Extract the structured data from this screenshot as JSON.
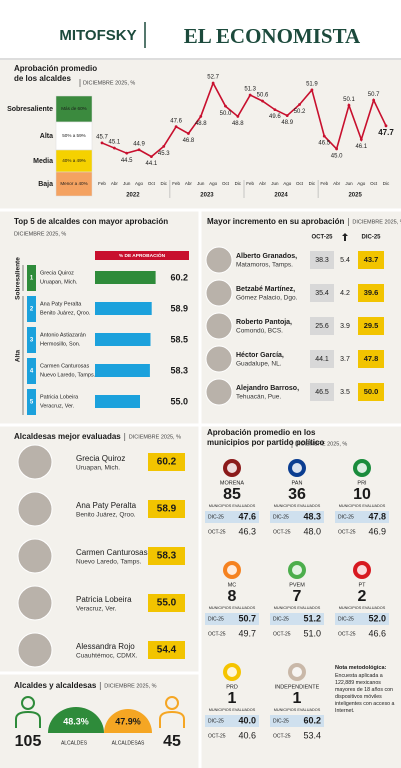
{
  "header": {
    "logo": "MITOFSKY",
    "brand": "EL ECONOMISTA"
  },
  "chart_data": {
    "type": "line",
    "title": "Aprobación promedio de los alcaldes",
    "subtitle": "DICIEMBRE 2025, %",
    "categories": [
      "Feb",
      "Abr",
      "Jun",
      "Ago",
      "Oct",
      "Dic",
      "Feb",
      "Abr",
      "Jun",
      "Ago",
      "Oct",
      "Dic",
      "Feb",
      "Abr",
      "Jun",
      "Ago",
      "Oct",
      "Dic",
      "Feb",
      "Abr",
      "Jun",
      "Ago",
      "Oct",
      "Dic"
    ],
    "years": [
      "2022",
      "2023",
      "2024",
      "2025"
    ],
    "values": [
      45.7,
      45.1,
      44.5,
      44.9,
      44.1,
      45.3,
      47.6,
      46.8,
      48.8,
      52.7,
      50,
      48.8,
      51.3,
      50.6,
      49.6,
      48.9,
      50.2,
      51.9,
      46.5,
      45,
      50.1,
      46.1,
      50.7,
      47.7
    ],
    "value_labels": [
      "45.7",
      "45.1",
      "44.5",
      "44.9",
      "44.1",
      "45.3",
      "47.6",
      "46.8",
      "48.8",
      "52.7",
      "50.0",
      "48.8",
      "51.3",
      "50.6",
      "49.6",
      "48.9",
      "50.2",
      "51.9",
      "46.5",
      "45.0",
      "50.1",
      "46.1",
      "50.7",
      "47.7"
    ],
    "color": "#c8102e",
    "ylim": [
      43,
      54
    ],
    "bands": [
      {
        "name": "Sobresaliente",
        "range": "Más de 60%",
        "color": "#3b8a3e"
      },
      {
        "name": "Alta",
        "range": "50% a 59%",
        "color": "#ffffff"
      },
      {
        "name": "Media",
        "range": "40% a 49%",
        "color": "#f5d100"
      },
      {
        "name": "Baja",
        "range": "Menor a 40%",
        "color": "#f4a261"
      }
    ]
  },
  "top5": {
    "title": "Top 5 de alcaldes con mayor aprobación",
    "subtitle": "DICIEMBRE 2025, %",
    "header": "% DE APROBACIÓN",
    "xlim": [
      40,
      62
    ],
    "groups": [
      {
        "name": "Sobresaliente",
        "color": "#2e8b3a",
        "rows": [
          {
            "rank": 1,
            "name": "Grecia Quiroz",
            "place": "Uruapan, Mich.",
            "value": 60.2,
            "value_label": "60.2"
          }
        ]
      },
      {
        "name": "Alta",
        "color": "#1ba1dc",
        "rows": [
          {
            "rank": 2,
            "name": "Ana Paty Peralta",
            "place": "Benito Juárez, Qroo.",
            "value": 58.9,
            "value_label": "58.9"
          },
          {
            "rank": 3,
            "name": "Antonio Astiazarán",
            "place": "Hermosillo, Son.",
            "value": 58.5,
            "value_label": "58.5"
          },
          {
            "rank": 4,
            "name": "Carmen Canturosas",
            "place": "Nuevo Laredo, Tamps.",
            "value": 58.3,
            "value_label": "58.3"
          },
          {
            "rank": 5,
            "name": "Patricia Lobeira",
            "place": "Veracruz, Ver.",
            "value": 55,
            "value_label": "55.0"
          }
        ]
      }
    ]
  },
  "increment": {
    "title": "Mayor incremento en su aprobación",
    "subtitle": "DICIEMBRE 2025, %",
    "columns": [
      "OCT-25",
      "DIC-25"
    ],
    "rows": [
      {
        "name": "Alberto Granados,",
        "place": "Matamoros, Tamps.",
        "oct": "38.3",
        "delta": "5.4",
        "dic": "43.7"
      },
      {
        "name": "Betzabé Martínez,",
        "place": "Gómez Palacio, Dgo.",
        "oct": "35.4",
        "delta": "4.2",
        "dic": "39.6"
      },
      {
        "name": "Roberto Pantoja,",
        "place": "Comondú, BCS.",
        "oct": "25.6",
        "delta": "3.9",
        "dic": "29.5"
      },
      {
        "name": "Héctor García,",
        "place": "Guadalupe, NL.",
        "oct": "44.1",
        "delta": "3.7",
        "dic": "47.8"
      },
      {
        "name": "Alejandro Barroso,",
        "place": "Tehuacán, Pue.",
        "oct": "46.5",
        "delta": "3.5",
        "dic": "50.0"
      }
    ]
  },
  "women": {
    "title": "Alcaldesas mejor evaluadas",
    "subtitle": "DICIEMBRE 2025, %",
    "rows": [
      {
        "name": "Grecia Quiroz",
        "place": "Uruapan, Mich.",
        "value": "60.2"
      },
      {
        "name": "Ana Paty Peralta",
        "place": "Benito Juárez, Qroo.",
        "value": "58.9"
      },
      {
        "name": "Carmen Canturosas",
        "place": "Nuevo Laredo, Tamps.",
        "value": "58.3"
      },
      {
        "name": "Patricia Lobeira",
        "place": "Veracruz, Ver.",
        "value": "55.0"
      },
      {
        "name": "Alessandra Rojo",
        "place": "Cuauhtémoc, CDMX.",
        "value": "54.4"
      }
    ]
  },
  "parties": {
    "title": "Aprobación promedio en los municipios por partido político",
    "subtitle": "DICIEMBRE 2025, %",
    "count_label": "MUNICIPIOS EVALUADOS",
    "dic_label": "DIC-25",
    "oct_label": "OCT-25",
    "items": [
      {
        "name": "MORENA",
        "color": "#8b1a1a",
        "count": "85",
        "dic": "47.6",
        "oct": "46.3"
      },
      {
        "name": "PAN",
        "color": "#0a3d91",
        "count": "36",
        "dic": "48.3",
        "oct": "48.0"
      },
      {
        "name": "PRI",
        "color": "#1a8c3c",
        "count": "10",
        "dic": "47.8",
        "oct": "46.9"
      },
      {
        "name": "MC",
        "color": "#f58220",
        "count": "8",
        "dic": "50.7",
        "oct": "49.7"
      },
      {
        "name": "PVEM",
        "color": "#4cae4c",
        "count": "7",
        "dic": "51.2",
        "oct": "51.0"
      },
      {
        "name": "PT",
        "color": "#d71920",
        "count": "2",
        "dic": "52.0",
        "oct": "46.6"
      },
      {
        "name": "PRD",
        "color": "#f5c400",
        "count": "1",
        "dic": "40.0",
        "oct": "40.6"
      },
      {
        "name": "INDEPENDIENTE",
        "color": "#c9b8a8",
        "count": "1",
        "dic": "60.2",
        "oct": "53.4"
      }
    ],
    "note_title": "Nota metodológica:",
    "note": "Encuesta aplicada a 122,889 mexicanos mayores de 18 años con dispositivos móviles inteligentes con acceso a Internet."
  },
  "gender": {
    "title": "Alcaldes y alcaldesas",
    "subtitle": "DICIEMBRE 2025, %",
    "men": {
      "count": "105",
      "value": "48.3%",
      "label": "ALCALDES",
      "color": "#2e8b3a"
    },
    "women": {
      "count": "45",
      "value": "47.9%",
      "label": "ALCALDESAS",
      "color": "#f5a623"
    }
  }
}
